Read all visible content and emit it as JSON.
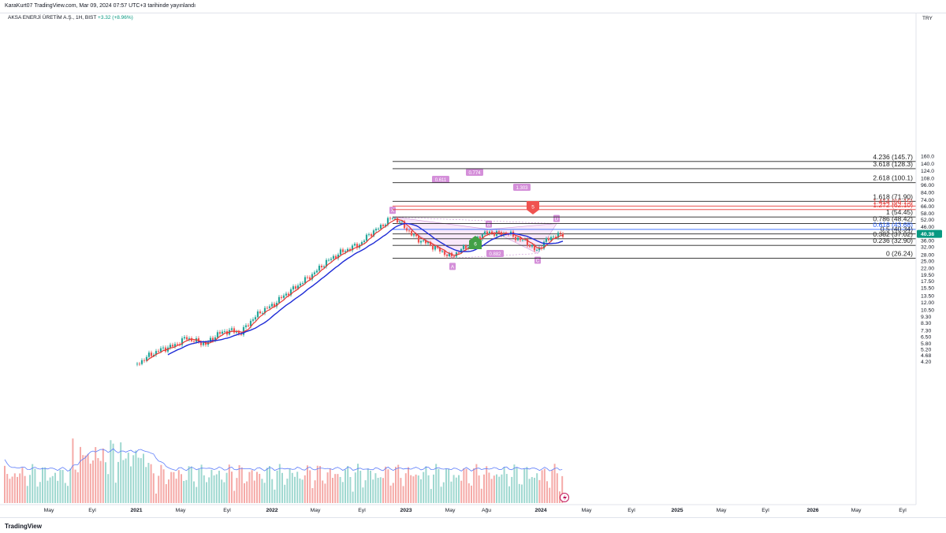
{
  "header": {
    "published_text": "KaraKurt07 TradingView.com, Mar 09, 2024 07:57 UTC+3 tarihinde yayınlandı"
  },
  "symbol": {
    "name": "AKSA ENERJİ ÜRETİM A.Ş., 1H, BIST",
    "change": "+3.32 (+8.96%)"
  },
  "currency": "TRY",
  "last_price": "40.38",
  "footer": {
    "logo_text": "TradingView"
  },
  "colors": {
    "up": "#26a69a",
    "down": "#ef5350",
    "vol_up": "#9fd8d0",
    "vol_down": "#f5aaa7",
    "ma_fast": "#e53935",
    "ma_slow": "#1e2bd6",
    "vol_ma": "#5c7cfa",
    "harmonic": "#e1bee7",
    "harmonic_label": "#ce93d8",
    "fib": "#222222",
    "fib_red": "#e53935",
    "fib_blue": "#2962ff",
    "price_tag": "#089981"
  },
  "chart_data": {
    "type": "candlestick",
    "title": "AKSA ENERJİ ÜRETİM A.Ş., 1H, BIST",
    "y_scale": "log",
    "y_ticks": [
      "160.0",
      "140.0",
      "124.0",
      "108.0",
      "96.00",
      "84.00",
      "74.00",
      "66.00",
      "58.00",
      "52.00",
      "46.00",
      "40.00",
      "36.00",
      "32.00",
      "28.00",
      "25.00",
      "22.00",
      "19.50",
      "17.50",
      "15.50",
      "13.50",
      "12.00",
      "10.50",
      "9.30",
      "8.30",
      "7.30",
      "6.50",
      "5.80",
      "5.20",
      "4.68",
      "4.20"
    ],
    "x_ticks": [
      "May",
      "Eyl",
      "2021",
      "May",
      "Eyl",
      "2022",
      "May",
      "Eyl",
      "2023",
      "May",
      "Ağu",
      "2024",
      "May",
      "Eyl",
      "2025",
      "May",
      "Eyl",
      "2026",
      "May",
      "Eyl"
    ],
    "fib_levels": [
      {
        "label": "4.236 (145.7)",
        "value": 145.7,
        "color": "#222222"
      },
      {
        "label": "3.618 (128.3)",
        "value": 128.3,
        "color": "#222222"
      },
      {
        "label": "2.618 (100.1)",
        "value": 100.1,
        "color": "#222222"
      },
      {
        "label": "1.618 (71.90)",
        "value": 71.9,
        "color": "#222222"
      },
      {
        "label": "1.414 (66.15)",
        "value": 66.15,
        "color": "#e53935"
      },
      {
        "label": "1.272 (62.10)",
        "value": 62.1,
        "color": "#e53935"
      },
      {
        "label": "1 (54.45)",
        "value": 54.45,
        "color": "#222222"
      },
      {
        "label": "0.786 (48.42)",
        "value": 48.42,
        "color": "#222222"
      },
      {
        "label": "0.618 (43.68)",
        "value": 43.68,
        "color": "#2962ff"
      },
      {
        "label": "0.5 (40.34)",
        "value": 40.34,
        "color": "#222222"
      },
      {
        "label": "0.382 (37.02)",
        "value": 37.02,
        "color": "#222222"
      },
      {
        "label": "0.236 (32.90)",
        "value": 32.9,
        "color": "#222222"
      },
      {
        "label": "0 (26.24)",
        "value": 26.24,
        "color": "#222222"
      }
    ],
    "harmonic_points": [
      {
        "name": "X",
        "value": 54.45
      },
      {
        "name": "A",
        "value": 26.24
      },
      {
        "name": "B",
        "value": 43.8
      },
      {
        "name": "C",
        "value": 28.5
      },
      {
        "name": "D",
        "value": 48.4
      }
    ],
    "harmonic_ratios": [
      "0.611",
      "0.774",
      "1.303",
      "0.882"
    ],
    "signals": [
      {
        "label": "6",
        "kind": "buy"
      },
      {
        "label": "5",
        "kind": "sell"
      }
    ]
  }
}
